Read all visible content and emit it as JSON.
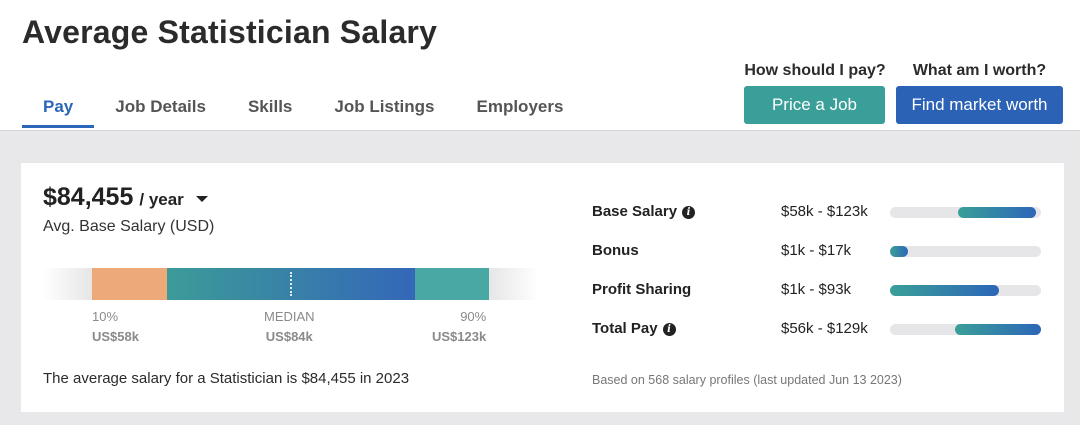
{
  "page": {
    "title": "Average Statistician Salary"
  },
  "tabs": [
    {
      "label": "Pay",
      "active": true
    },
    {
      "label": "Job Details",
      "active": false
    },
    {
      "label": "Skills",
      "active": false
    },
    {
      "label": "Job Listings",
      "active": false
    },
    {
      "label": "Employers",
      "active": false
    }
  ],
  "cta": {
    "price_job": {
      "question": "How should I pay?",
      "button": "Price a Job"
    },
    "market_worth": {
      "question": "What am I worth?",
      "button": "Find market worth"
    }
  },
  "salary": {
    "amount": "$84,455",
    "period": "/ year",
    "caption": "Avg. Base Salary (USD)"
  },
  "range": {
    "low": {
      "label": "10%",
      "value": "US$58k"
    },
    "median": {
      "label": "MEDIAN",
      "value": "US$84k"
    },
    "high": {
      "label": "90%",
      "value": "US$123k"
    }
  },
  "summary": "The average salary for a Statistician is $84,455 in 2023",
  "compensation": [
    {
      "name": "Base Salary",
      "info": true,
      "range": "$58k - $123k",
      "bar_start": 0.45,
      "bar_end": 0.97
    },
    {
      "name": "Bonus",
      "info": false,
      "range": "$1k - $17k",
      "bar_start": 0.0,
      "bar_end": 0.12
    },
    {
      "name": "Profit Sharing",
      "info": false,
      "range": "$1k - $93k",
      "bar_start": 0.0,
      "bar_end": 0.72
    },
    {
      "name": "Total Pay",
      "info": true,
      "range": "$56k - $129k",
      "bar_start": 0.43,
      "bar_end": 1.0
    }
  ],
  "footnote": "Based on 568 salary profiles (last updated Jun 13 2023)",
  "colors": {
    "accent_blue": "#2c66b8",
    "teal": "#3a9f98",
    "orange": "#eda979"
  }
}
